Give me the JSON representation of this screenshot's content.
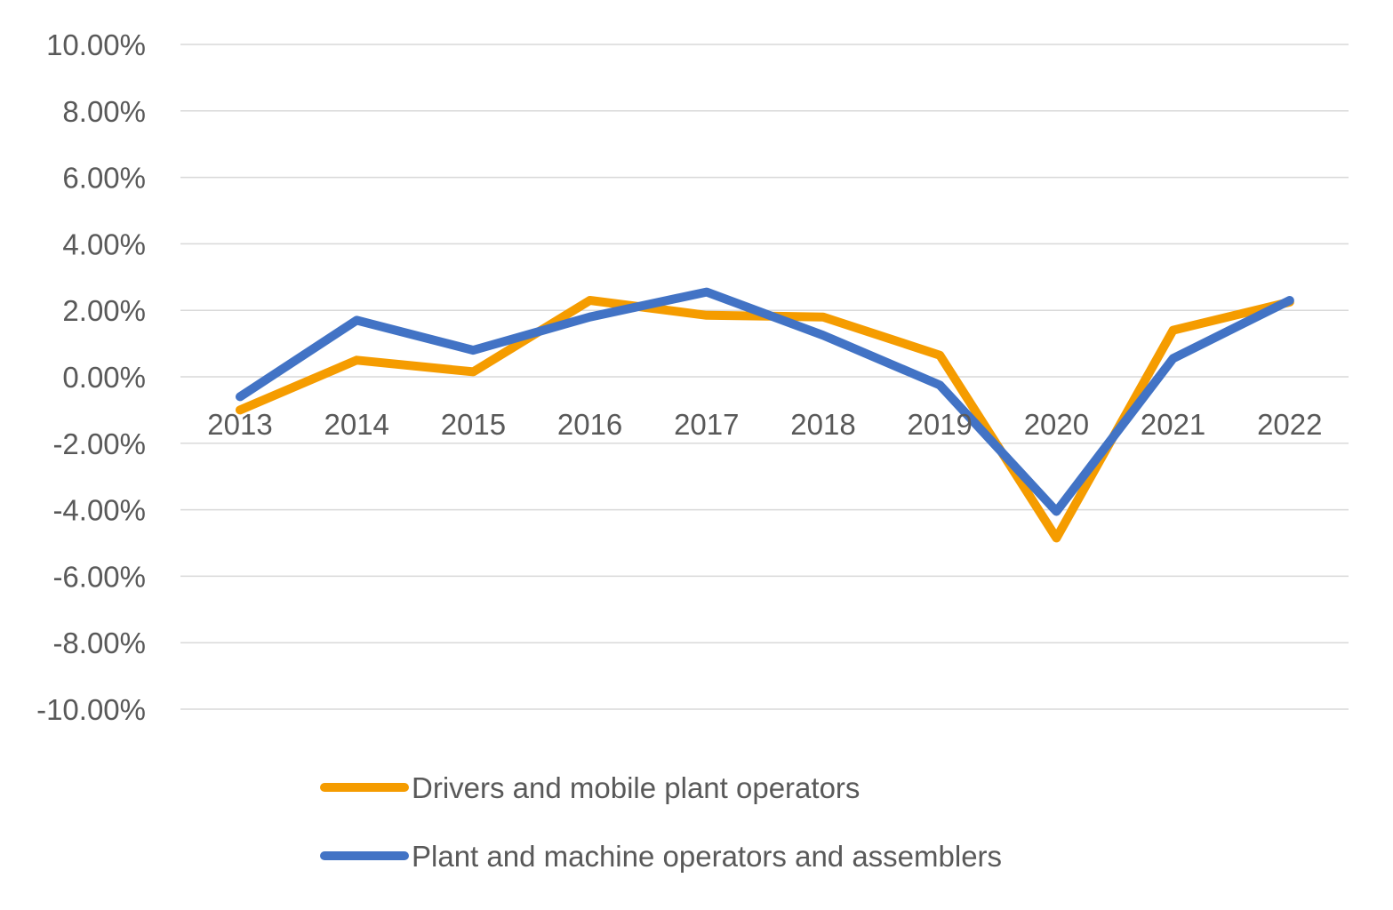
{
  "chart_data": {
    "type": "line",
    "title": "",
    "xlabel": "",
    "ylabel": "",
    "categories": [
      "2013",
      "2014",
      "2015",
      "2016",
      "2017",
      "2018",
      "2019",
      "2020",
      "2021",
      "2022"
    ],
    "ylim": [
      -10,
      10
    ],
    "yticks": [
      10,
      8,
      6,
      4,
      2,
      0,
      -2,
      -4,
      -6,
      -8,
      -10
    ],
    "ytick_labels": [
      "10.00%",
      "8.00%",
      "6.00%",
      "4.00%",
      "2.00%",
      "0.00%",
      "-2.00%",
      "-4.00%",
      "-6.00%",
      "-8.00%",
      "-10.00%"
    ],
    "grid": true,
    "legend_position": "bottom",
    "series": [
      {
        "name": "Drivers and mobile plant operators",
        "color": "#f59c00",
        "values": [
          -1.0,
          0.5,
          0.15,
          2.3,
          1.85,
          1.8,
          0.65,
          -4.85,
          1.4,
          2.25
        ]
      },
      {
        "name": "Plant and machine operators and assemblers",
        "color": "#4273c5",
        "values": [
          -0.6,
          1.7,
          0.8,
          1.8,
          2.55,
          1.25,
          -0.25,
          -4.05,
          0.55,
          2.3
        ]
      }
    ]
  }
}
